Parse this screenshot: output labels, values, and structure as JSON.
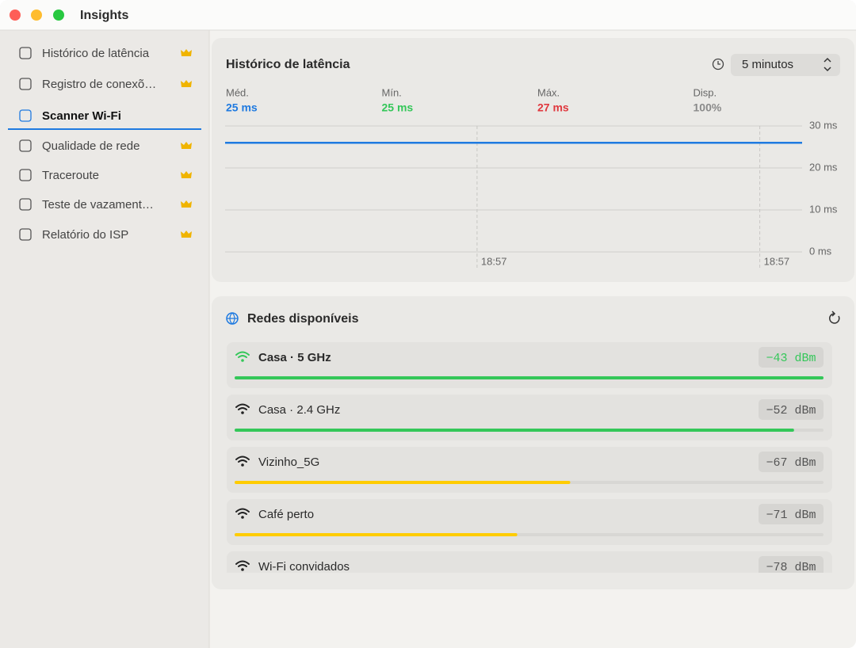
{
  "window": {
    "title": "Insights"
  },
  "sidebar": {
    "selected": 2,
    "items": [
      {
        "label": "Histórico de latência",
        "premium": true
      },
      {
        "label": "Registro de conexõ…",
        "premium": true
      },
      {
        "label": "Scanner Wi-Fi",
        "premium": false
      },
      {
        "label": "Qualidade de rede",
        "premium": true
      },
      {
        "label": "Traceroute",
        "premium": true
      },
      {
        "label": "Teste de vazament…",
        "premium": true
      },
      {
        "label": "Relatório do ISP",
        "premium": true
      }
    ]
  },
  "latency": {
    "title": "Histórico de latência",
    "range": "5 minutos",
    "stats": [
      {
        "label": "Méd.",
        "value": "25 ms",
        "color": "#1f7ae0"
      },
      {
        "label": "Mín.",
        "value": "25 ms",
        "color": "#34c759"
      },
      {
        "label": "Máx.",
        "value": "27 ms",
        "color": "#e0383e"
      },
      {
        "label": "Disp.",
        "value": "100%",
        "color": "#8a8a8a"
      }
    ]
  },
  "chart_data": {
    "type": "line",
    "x": [
      0,
      300
    ],
    "xlim": [
      0,
      300
    ],
    "xticks": [
      {
        "value": 131,
        "label": "18:57"
      },
      {
        "value": 278,
        "label": "18:57"
      }
    ],
    "series": [
      {
        "color": "#1f7ae0",
        "values": [
          26,
          26
        ]
      }
    ],
    "ylim": [
      0,
      30
    ],
    "yticks": [
      {
        "value": 0,
        "label": "0 ms"
      },
      {
        "value": 10,
        "label": "10 ms"
      },
      {
        "value": 20,
        "label": "20 ms"
      },
      {
        "value": 30,
        "label": "30 ms"
      }
    ],
    "grid": true
  },
  "networks": {
    "title": "Redes disponíveis",
    "items": [
      {
        "name": "Casa · 5 GHz",
        "signal": "−43 dBm",
        "quality": 100,
        "color": "#34c759",
        "current": true
      },
      {
        "name": "Casa · 2.4 GHz",
        "signal": "−52 dBm",
        "quality": 95,
        "color": "#34c759",
        "current": false
      },
      {
        "name": "Vizinho_5G",
        "signal": "−67 dBm",
        "quality": 57,
        "color": "#ffcc00",
        "current": false
      },
      {
        "name": "Café perto",
        "signal": "−71 dBm",
        "quality": 48,
        "color": "#ffcc00",
        "current": false
      },
      {
        "name": "Wi-Fi convidados",
        "signal": "−78 dBm",
        "current": false
      }
    ]
  }
}
